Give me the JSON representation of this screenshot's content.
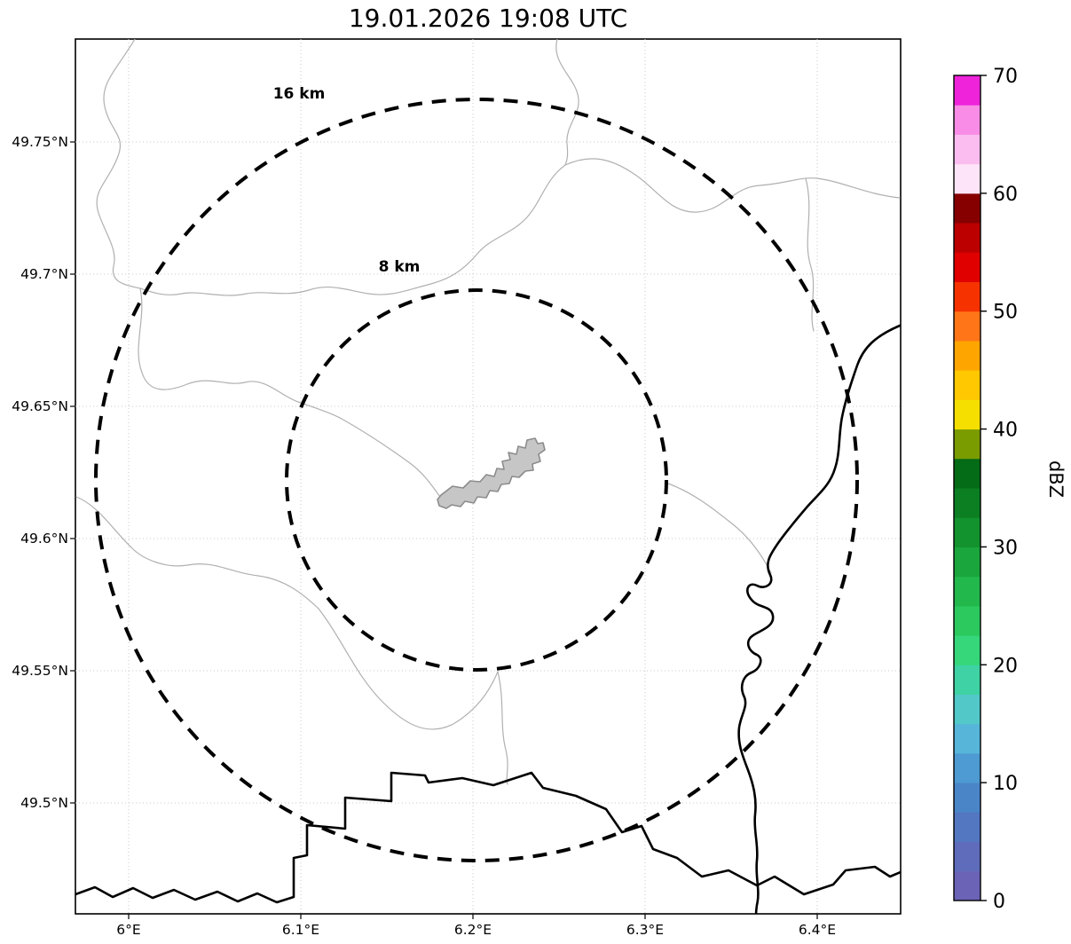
{
  "title": "19.01.2026 19:08 UTC",
  "map": {
    "y_ticks": [
      "49.75°N",
      "49.7°N",
      "49.65°N",
      "49.6°N",
      "49.55°N",
      "49.5°N"
    ],
    "x_ticks": [
      "6°E",
      "6.1°E",
      "6.2°E",
      "6.3°E",
      "6.4°E"
    ],
    "range_rings": [
      {
        "label": "16 km",
        "radius_km": 16
      },
      {
        "label": "8 km",
        "radius_km": 8
      }
    ],
    "city_fill": "#c6c6c6",
    "city_stroke": "#8c8c8c"
  },
  "colorbar": {
    "label": "dBZ",
    "min": 0,
    "max": 70,
    "ticks": [
      0,
      10,
      20,
      30,
      40,
      50,
      60,
      70
    ],
    "colors": [
      "#6b63b5",
      "#5f6cbb",
      "#5377c1",
      "#4a85c8",
      "#4e9ad2",
      "#57b5da",
      "#52c8c8",
      "#3fd2a4",
      "#35d77a",
      "#2bc95e",
      "#22b84c",
      "#1aa63c",
      "#12932e",
      "#0b7f22",
      "#046b17",
      "#7a9c00",
      "#f5df00",
      "#ffc800",
      "#ffa500",
      "#ff7518",
      "#f63300",
      "#e00000",
      "#bc0000",
      "#870000",
      "#fde4f8",
      "#fbbdf0",
      "#f98ce6",
      "#ef23da"
    ]
  },
  "chart_data": {
    "type": "map",
    "title": "19.01.2026 19:08 UTC",
    "lon_extent": [
      5.97,
      6.45
    ],
    "lat_extent": [
      49.46,
      49.79
    ],
    "lon_ticks": [
      6.0,
      6.1,
      6.2,
      6.3,
      6.4
    ],
    "lat_ticks": [
      49.5,
      49.55,
      49.6,
      49.65,
      49.7,
      49.75
    ],
    "radar_range_rings_km": [
      8,
      16
    ],
    "ring_center_approx": {
      "lon": 6.2,
      "lat": 49.62
    },
    "colorbar": {
      "label": "dBZ",
      "range": [
        0,
        70
      ],
      "tick_step": 10
    },
    "grid": true
  }
}
